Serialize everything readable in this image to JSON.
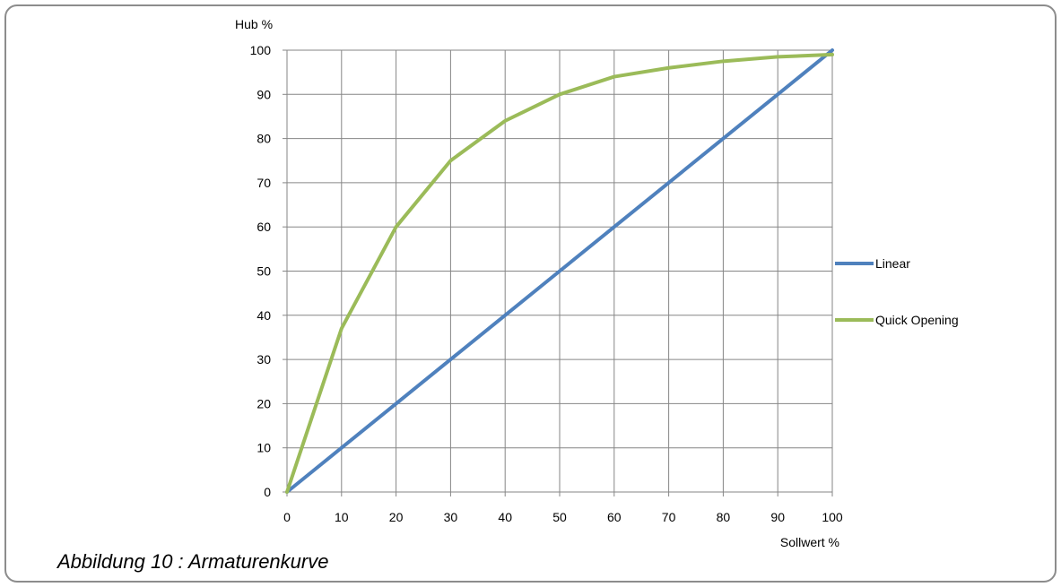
{
  "caption": "Abbildung 10 : Armaturenkurve",
  "chart_data": {
    "type": "line",
    "title": "",
    "xlabel": "Sollwert %",
    "ylabel": "Hub %",
    "xlim": [
      0,
      100
    ],
    "ylim": [
      0,
      100
    ],
    "x_ticks": [
      0,
      10,
      20,
      30,
      40,
      50,
      60,
      70,
      80,
      90,
      100
    ],
    "y_ticks": [
      0,
      10,
      20,
      30,
      40,
      50,
      60,
      70,
      80,
      90,
      100
    ],
    "grid": true,
    "legend_position": "right",
    "x": [
      0,
      10,
      20,
      30,
      40,
      50,
      60,
      70,
      80,
      90,
      100
    ],
    "series": [
      {
        "name": "Linear",
        "color": "#4f81bd",
        "values": [
          0,
          10,
          20,
          30,
          40,
          50,
          60,
          70,
          80,
          90,
          100
        ]
      },
      {
        "name": "Quick Opening",
        "color": "#9bbb59",
        "values": [
          0,
          37,
          60,
          75,
          84,
          90,
          94,
          96,
          97.5,
          98.5,
          99
        ]
      }
    ]
  }
}
